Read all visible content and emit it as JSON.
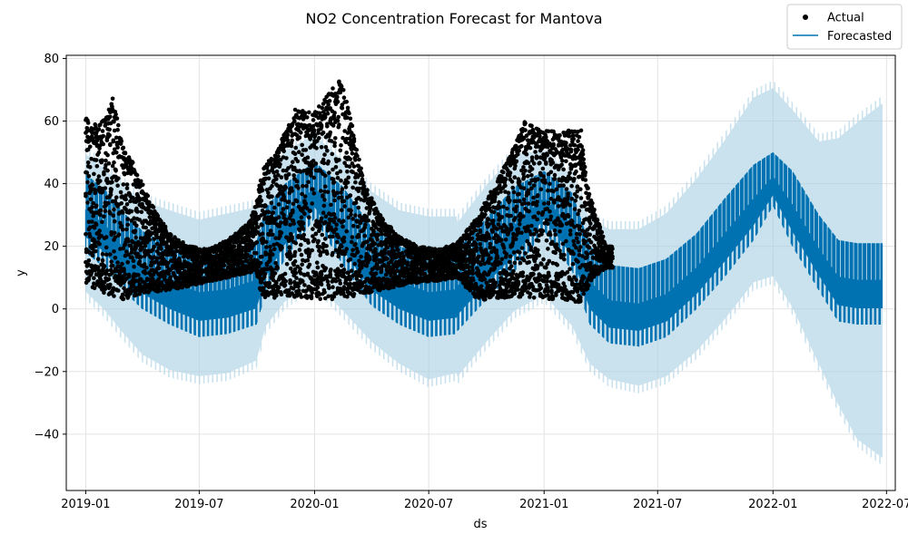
{
  "chart_data": {
    "type": "line",
    "title": "NO2 Concentration Forecast for Mantova",
    "xlabel": "ds",
    "ylabel": "y",
    "x_range": [
      "2018-12-01",
      "2022-07-15"
    ],
    "ylim": [
      -58,
      81
    ],
    "x_ticks": [
      "2019-01",
      "2019-07",
      "2020-01",
      "2020-07",
      "2021-01",
      "2021-07",
      "2022-01",
      "2022-07"
    ],
    "y_ticks": [
      80,
      60,
      40,
      20,
      0,
      -20,
      -40
    ],
    "grid": true,
    "legend": {
      "placement": "top-right",
      "entries": [
        "Actual",
        "Forecasted"
      ]
    },
    "colors": {
      "actual": "#000000",
      "forecast": "#0072B2",
      "interval": "#A6CEE3"
    },
    "actual_period": [
      "2019-01-01",
      "2021-04-20"
    ],
    "forecast_period": [
      "2019-01-01",
      "2022-06-24"
    ],
    "forecast_upper": [
      {
        "x": "2019-01-01",
        "y": 52
      },
      {
        "x": "2019-02-01",
        "y": 47
      },
      {
        "x": "2019-03-01",
        "y": 42
      },
      {
        "x": "2019-04-01",
        "y": 37
      },
      {
        "x": "2019-05-15",
        "y": 34
      },
      {
        "x": "2019-07-01",
        "y": 31
      },
      {
        "x": "2019-08-15",
        "y": 33
      },
      {
        "x": "2019-09-30",
        "y": 35
      },
      {
        "x": "2019-10-15",
        "y": 45
      },
      {
        "x": "2019-11-15",
        "y": 53
      },
      {
        "x": "2020-01-01",
        "y": 58
      },
      {
        "x": "2020-02-15",
        "y": 50
      },
      {
        "x": "2020-04-01",
        "y": 40
      },
      {
        "x": "2020-05-15",
        "y": 34
      },
      {
        "x": "2020-07-01",
        "y": 32
      },
      {
        "x": "2020-08-14",
        "y": 32
      },
      {
        "x": "2020-08-16",
        "y": 30
      },
      {
        "x": "2020-10-01",
        "y": 42
      },
      {
        "x": "2020-11-15",
        "y": 52
      },
      {
        "x": "2021-01-01",
        "y": 53
      },
      {
        "x": "2021-02-15",
        "y": 45
      },
      {
        "x": "2021-03-15",
        "y": 31
      },
      {
        "x": "2021-04-15",
        "y": 28
      },
      {
        "x": "2021-06-01",
        "y": 28
      },
      {
        "x": "2021-07-15",
        "y": 33
      },
      {
        "x": "2021-09-01",
        "y": 44
      },
      {
        "x": "2021-10-15",
        "y": 56
      },
      {
        "x": "2021-12-01",
        "y": 70
      },
      {
        "x": "2022-01-01",
        "y": 73
      },
      {
        "x": "2022-02-01",
        "y": 66
      },
      {
        "x": "2022-03-15",
        "y": 56
      },
      {
        "x": "2022-04-15",
        "y": 57
      },
      {
        "x": "2022-05-15",
        "y": 62
      },
      {
        "x": "2022-06-24",
        "y": 68
      }
    ],
    "forecast_lower": [
      {
        "x": "2019-01-01",
        "y": 3
      },
      {
        "x": "2019-02-01",
        "y": -3
      },
      {
        "x": "2019-03-01",
        "y": -10
      },
      {
        "x": "2019-04-01",
        "y": -17
      },
      {
        "x": "2019-05-15",
        "y": -22
      },
      {
        "x": "2019-07-01",
        "y": -24
      },
      {
        "x": "2019-08-15",
        "y": -23
      },
      {
        "x": "2019-09-30",
        "y": -19
      },
      {
        "x": "2019-10-15",
        "y": -8
      },
      {
        "x": "2019-11-15",
        "y": 0
      },
      {
        "x": "2020-01-01",
        "y": 6
      },
      {
        "x": "2020-02-15",
        "y": -3
      },
      {
        "x": "2020-04-01",
        "y": -13
      },
      {
        "x": "2020-05-15",
        "y": -20
      },
      {
        "x": "2020-07-01",
        "y": -25
      },
      {
        "x": "2020-08-14",
        "y": -23
      },
      {
        "x": "2020-08-16",
        "y": -24
      },
      {
        "x": "2020-10-01",
        "y": -13
      },
      {
        "x": "2020-11-15",
        "y": -3
      },
      {
        "x": "2021-01-01",
        "y": 2
      },
      {
        "x": "2021-02-15",
        "y": -8
      },
      {
        "x": "2021-03-15",
        "y": -20
      },
      {
        "x": "2021-04-15",
        "y": -25
      },
      {
        "x": "2021-06-01",
        "y": -27
      },
      {
        "x": "2021-07-15",
        "y": -24
      },
      {
        "x": "2021-09-01",
        "y": -16
      },
      {
        "x": "2021-10-15",
        "y": -6
      },
      {
        "x": "2021-12-01",
        "y": 6
      },
      {
        "x": "2022-01-01",
        "y": 8
      },
      {
        "x": "2022-02-01",
        "y": -2
      },
      {
        "x": "2022-03-15",
        "y": -20
      },
      {
        "x": "2022-04-15",
        "y": -33
      },
      {
        "x": "2022-05-15",
        "y": -44
      },
      {
        "x": "2022-06-24",
        "y": -50
      }
    ],
    "forecast_high": [
      {
        "x": "2019-01-01",
        "y": 43
      },
      {
        "x": "2019-02-01",
        "y": 38
      },
      {
        "x": "2019-03-01",
        "y": 31
      },
      {
        "x": "2019-04-01",
        "y": 25
      },
      {
        "x": "2019-05-15",
        "y": 20
      },
      {
        "x": "2019-07-01",
        "y": 17
      },
      {
        "x": "2019-08-15",
        "y": 18
      },
      {
        "x": "2019-09-30",
        "y": 21
      },
      {
        "x": "2019-10-15",
        "y": 32
      },
      {
        "x": "2019-11-15",
        "y": 40
      },
      {
        "x": "2020-01-01",
        "y": 47
      },
      {
        "x": "2020-02-15",
        "y": 39
      },
      {
        "x": "2020-04-01",
        "y": 26
      },
      {
        "x": "2020-05-15",
        "y": 20
      },
      {
        "x": "2020-07-01",
        "y": 17
      },
      {
        "x": "2020-08-14",
        "y": 18
      },
      {
        "x": "2020-08-16",
        "y": 19
      },
      {
        "x": "2020-10-01",
        "y": 29
      },
      {
        "x": "2020-11-15",
        "y": 39
      },
      {
        "x": "2021-01-01",
        "y": 44
      },
      {
        "x": "2021-02-15",
        "y": 37
      },
      {
        "x": "2021-03-15",
        "y": 20
      },
      {
        "x": "2021-04-15",
        "y": 14
      },
      {
        "x": "2021-06-01",
        "y": 13
      },
      {
        "x": "2021-07-15",
        "y": 16
      },
      {
        "x": "2021-09-01",
        "y": 24
      },
      {
        "x": "2021-10-15",
        "y": 35
      },
      {
        "x": "2021-12-01",
        "y": 46
      },
      {
        "x": "2022-01-01",
        "y": 50
      },
      {
        "x": "2022-02-01",
        "y": 44
      },
      {
        "x": "2022-03-15",
        "y": 30
      },
      {
        "x": "2022-04-15",
        "y": 22
      },
      {
        "x": "2022-05-15",
        "y": 21
      },
      {
        "x": "2022-06-24",
        "y": 21
      }
    ],
    "forecast_low": [
      {
        "x": "2019-01-01",
        "y": 18
      },
      {
        "x": "2019-02-01",
        "y": 13
      },
      {
        "x": "2019-03-01",
        "y": 6
      },
      {
        "x": "2019-04-01",
        "y": 0
      },
      {
        "x": "2019-05-15",
        "y": -5
      },
      {
        "x": "2019-07-01",
        "y": -9
      },
      {
        "x": "2019-08-15",
        "y": -8
      },
      {
        "x": "2019-09-30",
        "y": -5
      },
      {
        "x": "2019-10-15",
        "y": 5
      },
      {
        "x": "2019-11-15",
        "y": 16
      },
      {
        "x": "2020-01-01",
        "y": 29
      },
      {
        "x": "2020-02-15",
        "y": 14
      },
      {
        "x": "2020-04-01",
        "y": 1
      },
      {
        "x": "2020-05-15",
        "y": -5
      },
      {
        "x": "2020-07-01",
        "y": -9
      },
      {
        "x": "2020-08-14",
        "y": -8
      },
      {
        "x": "2020-08-16",
        "y": -7
      },
      {
        "x": "2020-10-01",
        "y": 3
      },
      {
        "x": "2020-11-15",
        "y": 12
      },
      {
        "x": "2021-01-01",
        "y": 25
      },
      {
        "x": "2021-02-15",
        "y": 12
      },
      {
        "x": "2021-03-15",
        "y": -5
      },
      {
        "x": "2021-04-15",
        "y": -11
      },
      {
        "x": "2021-06-01",
        "y": -12
      },
      {
        "x": "2021-07-15",
        "y": -9
      },
      {
        "x": "2021-09-01",
        "y": 0
      },
      {
        "x": "2021-10-15",
        "y": 10
      },
      {
        "x": "2021-12-01",
        "y": 22
      },
      {
        "x": "2022-01-01",
        "y": 33
      },
      {
        "x": "2022-02-01",
        "y": 20
      },
      {
        "x": "2022-03-15",
        "y": 6
      },
      {
        "x": "2022-04-15",
        "y": -4
      },
      {
        "x": "2022-05-15",
        "y": -5
      },
      {
        "x": "2022-06-24",
        "y": -5
      }
    ],
    "actual_high": [
      {
        "x": "2019-01-01",
        "y": 61
      },
      {
        "x": "2019-01-20",
        "y": 59
      },
      {
        "x": "2019-02-05",
        "y": 62
      },
      {
        "x": "2019-02-12",
        "y": 69
      },
      {
        "x": "2019-03-01",
        "y": 52
      },
      {
        "x": "2019-03-20",
        "y": 46
      },
      {
        "x": "2019-04-15",
        "y": 34
      },
      {
        "x": "2019-05-15",
        "y": 24
      },
      {
        "x": "2019-06-15",
        "y": 20
      },
      {
        "x": "2019-07-15",
        "y": 19
      },
      {
        "x": "2019-08-15",
        "y": 22
      },
      {
        "x": "2019-09-15",
        "y": 27
      },
      {
        "x": "2019-09-29",
        "y": 33
      },
      {
        "x": "2019-10-10",
        "y": 45
      },
      {
        "x": "2019-11-01",
        "y": 50
      },
      {
        "x": "2019-12-01",
        "y": 64
      },
      {
        "x": "2020-01-01",
        "y": 63
      },
      {
        "x": "2020-02-12",
        "y": 74
      },
      {
        "x": "2020-03-01",
        "y": 59
      },
      {
        "x": "2020-03-20",
        "y": 40
      },
      {
        "x": "2020-04-15",
        "y": 30
      },
      {
        "x": "2020-05-15",
        "y": 23
      },
      {
        "x": "2020-06-15",
        "y": 20
      },
      {
        "x": "2020-07-15",
        "y": 19
      },
      {
        "x": "2020-08-15",
        "y": 21
      },
      {
        "x": "2020-09-15",
        "y": 29
      },
      {
        "x": "2020-10-15",
        "y": 40
      },
      {
        "x": "2020-11-15",
        "y": 52
      },
      {
        "x": "2020-12-01",
        "y": 60
      },
      {
        "x": "2021-01-01",
        "y": 57
      },
      {
        "x": "2021-02-01",
        "y": 57
      },
      {
        "x": "2021-03-01",
        "y": 57
      },
      {
        "x": "2021-03-10",
        "y": 40
      },
      {
        "x": "2021-04-10",
        "y": 20
      }
    ],
    "actual_low": [
      {
        "x": "2019-01-01",
        "y": 8
      },
      {
        "x": "2019-02-01",
        "y": 5
      },
      {
        "x": "2019-03-01",
        "y": 3
      },
      {
        "x": "2019-04-01",
        "y": 5
      },
      {
        "x": "2019-05-15",
        "y": 6
      },
      {
        "x": "2019-07-01",
        "y": 8
      },
      {
        "x": "2019-08-15",
        "y": 10
      },
      {
        "x": "2019-09-29",
        "y": 12
      },
      {
        "x": "2019-10-10",
        "y": 3
      },
      {
        "x": "2019-11-15",
        "y": 4
      },
      {
        "x": "2020-01-01",
        "y": 3
      },
      {
        "x": "2020-02-01",
        "y": 3
      },
      {
        "x": "2020-03-01",
        "y": 4
      },
      {
        "x": "2020-04-15",
        "y": 6
      },
      {
        "x": "2020-06-01",
        "y": 8
      },
      {
        "x": "2020-07-15",
        "y": 9
      },
      {
        "x": "2020-08-15",
        "y": 10
      },
      {
        "x": "2020-09-15",
        "y": 3
      },
      {
        "x": "2020-10-15",
        "y": 3
      },
      {
        "x": "2020-11-15",
        "y": 4
      },
      {
        "x": "2021-01-01",
        "y": 3
      },
      {
        "x": "2021-02-01",
        "y": 3
      },
      {
        "x": "2021-03-01",
        "y": 2
      },
      {
        "x": "2021-03-20",
        "y": 10
      },
      {
        "x": "2021-04-10",
        "y": 13
      }
    ]
  }
}
